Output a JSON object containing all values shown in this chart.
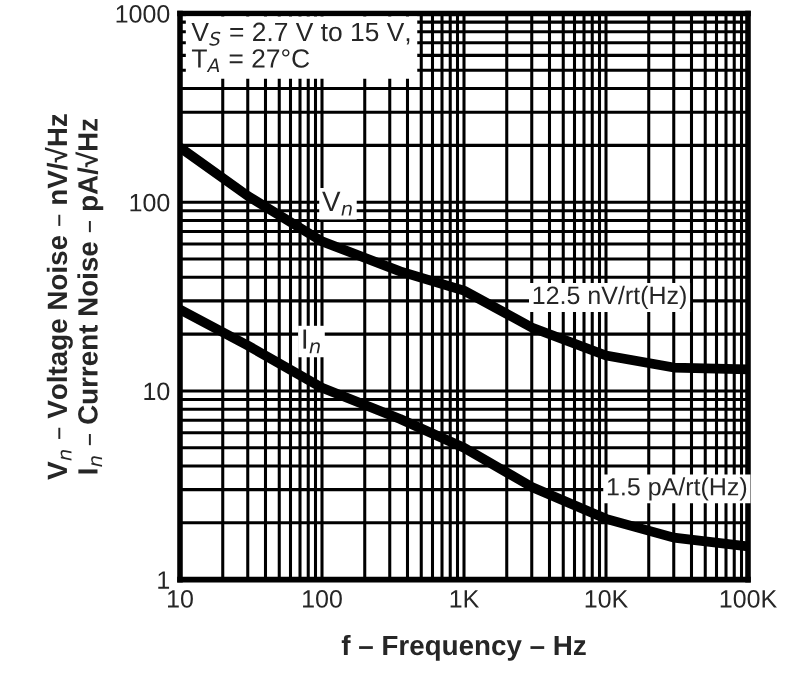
{
  "chart_data": {
    "type": "line",
    "xlabel": "f – Frequency – Hz",
    "ylabel": "V$_{n}$ – Voltage Noise – nV/√Hz\nI$_{n}$ – Current Noise – pA/√Hz",
    "log": "xy",
    "grid": true,
    "legend": false,
    "marker": "none",
    "line_style": "solid",
    "xlim": [
      10,
      100000
    ],
    "ylim": [
      1,
      1000
    ],
    "xticks": [
      10,
      100,
      {
        "value": 1000,
        "label": "1K"
      },
      {
        "value": 10000,
        "label": "10K"
      },
      {
        "value": 100000,
        "label": "100K"
      }
    ],
    "yticks": [
      1,
      10,
      100,
      1000
    ],
    "series": [
      {
        "name": "V$_{n}$",
        "color": "#000000",
        "x": [
          10,
          30,
          100,
          355,
          1000,
          3000,
          10000,
          30000,
          100000
        ],
        "values": [
          195,
          108,
          62,
          43,
          34,
          21.7,
          15.4,
          13.3,
          13
        ]
      },
      {
        "name": "I$_{n}$",
        "color": "#000000",
        "x": [
          10,
          30,
          100,
          355,
          1000,
          3000,
          10000,
          30000,
          100000
        ],
        "values": [
          27,
          17.4,
          10.4,
          7.1,
          5.0,
          3.1,
          2.1,
          1.67,
          1.5
        ]
      }
    ],
    "annotations": [
      "V$_{S}$ = 2.7 V to 15 V,\nT$_{A}$ = 27°C",
      {
        "text": "12.5 nV/rt(Hz)",
        "x": 3000,
        "y": 21.7
      },
      {
        "text": "1.5 pA/rt(Hz)",
        "x": 10000,
        "y": 2.1
      }
    ]
  }
}
